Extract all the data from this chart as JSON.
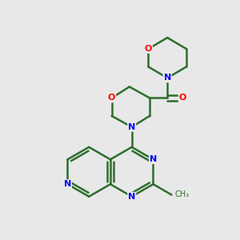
{
  "background_color": "#e8e8e8",
  "bond_color": "#2d6e2d",
  "N_color": "#0000ff",
  "O_color": "#ff0000",
  "bond_width": 1.8,
  "figsize": [
    3.0,
    3.0
  ],
  "dpi": 100,
  "xlim": [
    0,
    10
  ],
  "ylim": [
    0,
    10
  ]
}
